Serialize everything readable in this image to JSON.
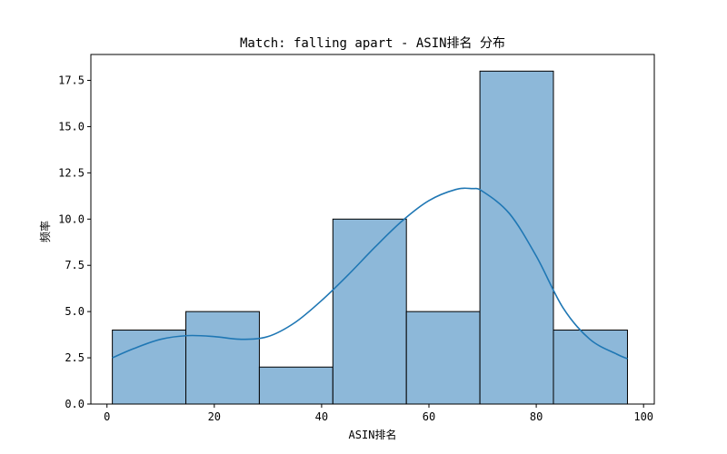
{
  "chart_data": {
    "type": "bar",
    "title": "Match: falling apart - ASIN排名 分布",
    "xlabel": "ASIN排名",
    "ylabel": "频率",
    "xlim": [
      -3,
      102
    ],
    "ylim": [
      0,
      18.9
    ],
    "xticks": [
      0,
      20,
      40,
      60,
      80,
      100
    ],
    "yticks": [
      0.0,
      2.5,
      5.0,
      7.5,
      10.0,
      12.5,
      15.0,
      17.5
    ],
    "bins": [
      {
        "x0": 1,
        "x1": 14.7,
        "value": 4
      },
      {
        "x0": 14.7,
        "x1": 28.4,
        "value": 5
      },
      {
        "x0": 28.4,
        "x1": 42.1,
        "value": 2
      },
      {
        "x0": 42.1,
        "x1": 55.8,
        "value": 10
      },
      {
        "x0": 55.8,
        "x1": 69.5,
        "value": 5
      },
      {
        "x0": 69.5,
        "x1": 83.2,
        "value": 18
      },
      {
        "x0": 83.2,
        "x1": 97,
        "value": 4
      }
    ],
    "kde": {
      "x": [
        1,
        5,
        10,
        15,
        20,
        25,
        30,
        35,
        40,
        45,
        50,
        55,
        60,
        65,
        68,
        70,
        75,
        80,
        85,
        90,
        95,
        97
      ],
      "y": [
        2.5,
        3.0,
        3.5,
        3.7,
        3.65,
        3.5,
        3.65,
        4.4,
        5.6,
        7.0,
        8.5,
        9.9,
        11.0,
        11.6,
        11.65,
        11.5,
        10.3,
        8.0,
        5.2,
        3.5,
        2.7,
        2.45
      ]
    },
    "colors": {
      "bar_fill": "#8db8d9",
      "bar_edge": "#000000",
      "kde_line": "#1f77b4"
    },
    "grid": false
  }
}
